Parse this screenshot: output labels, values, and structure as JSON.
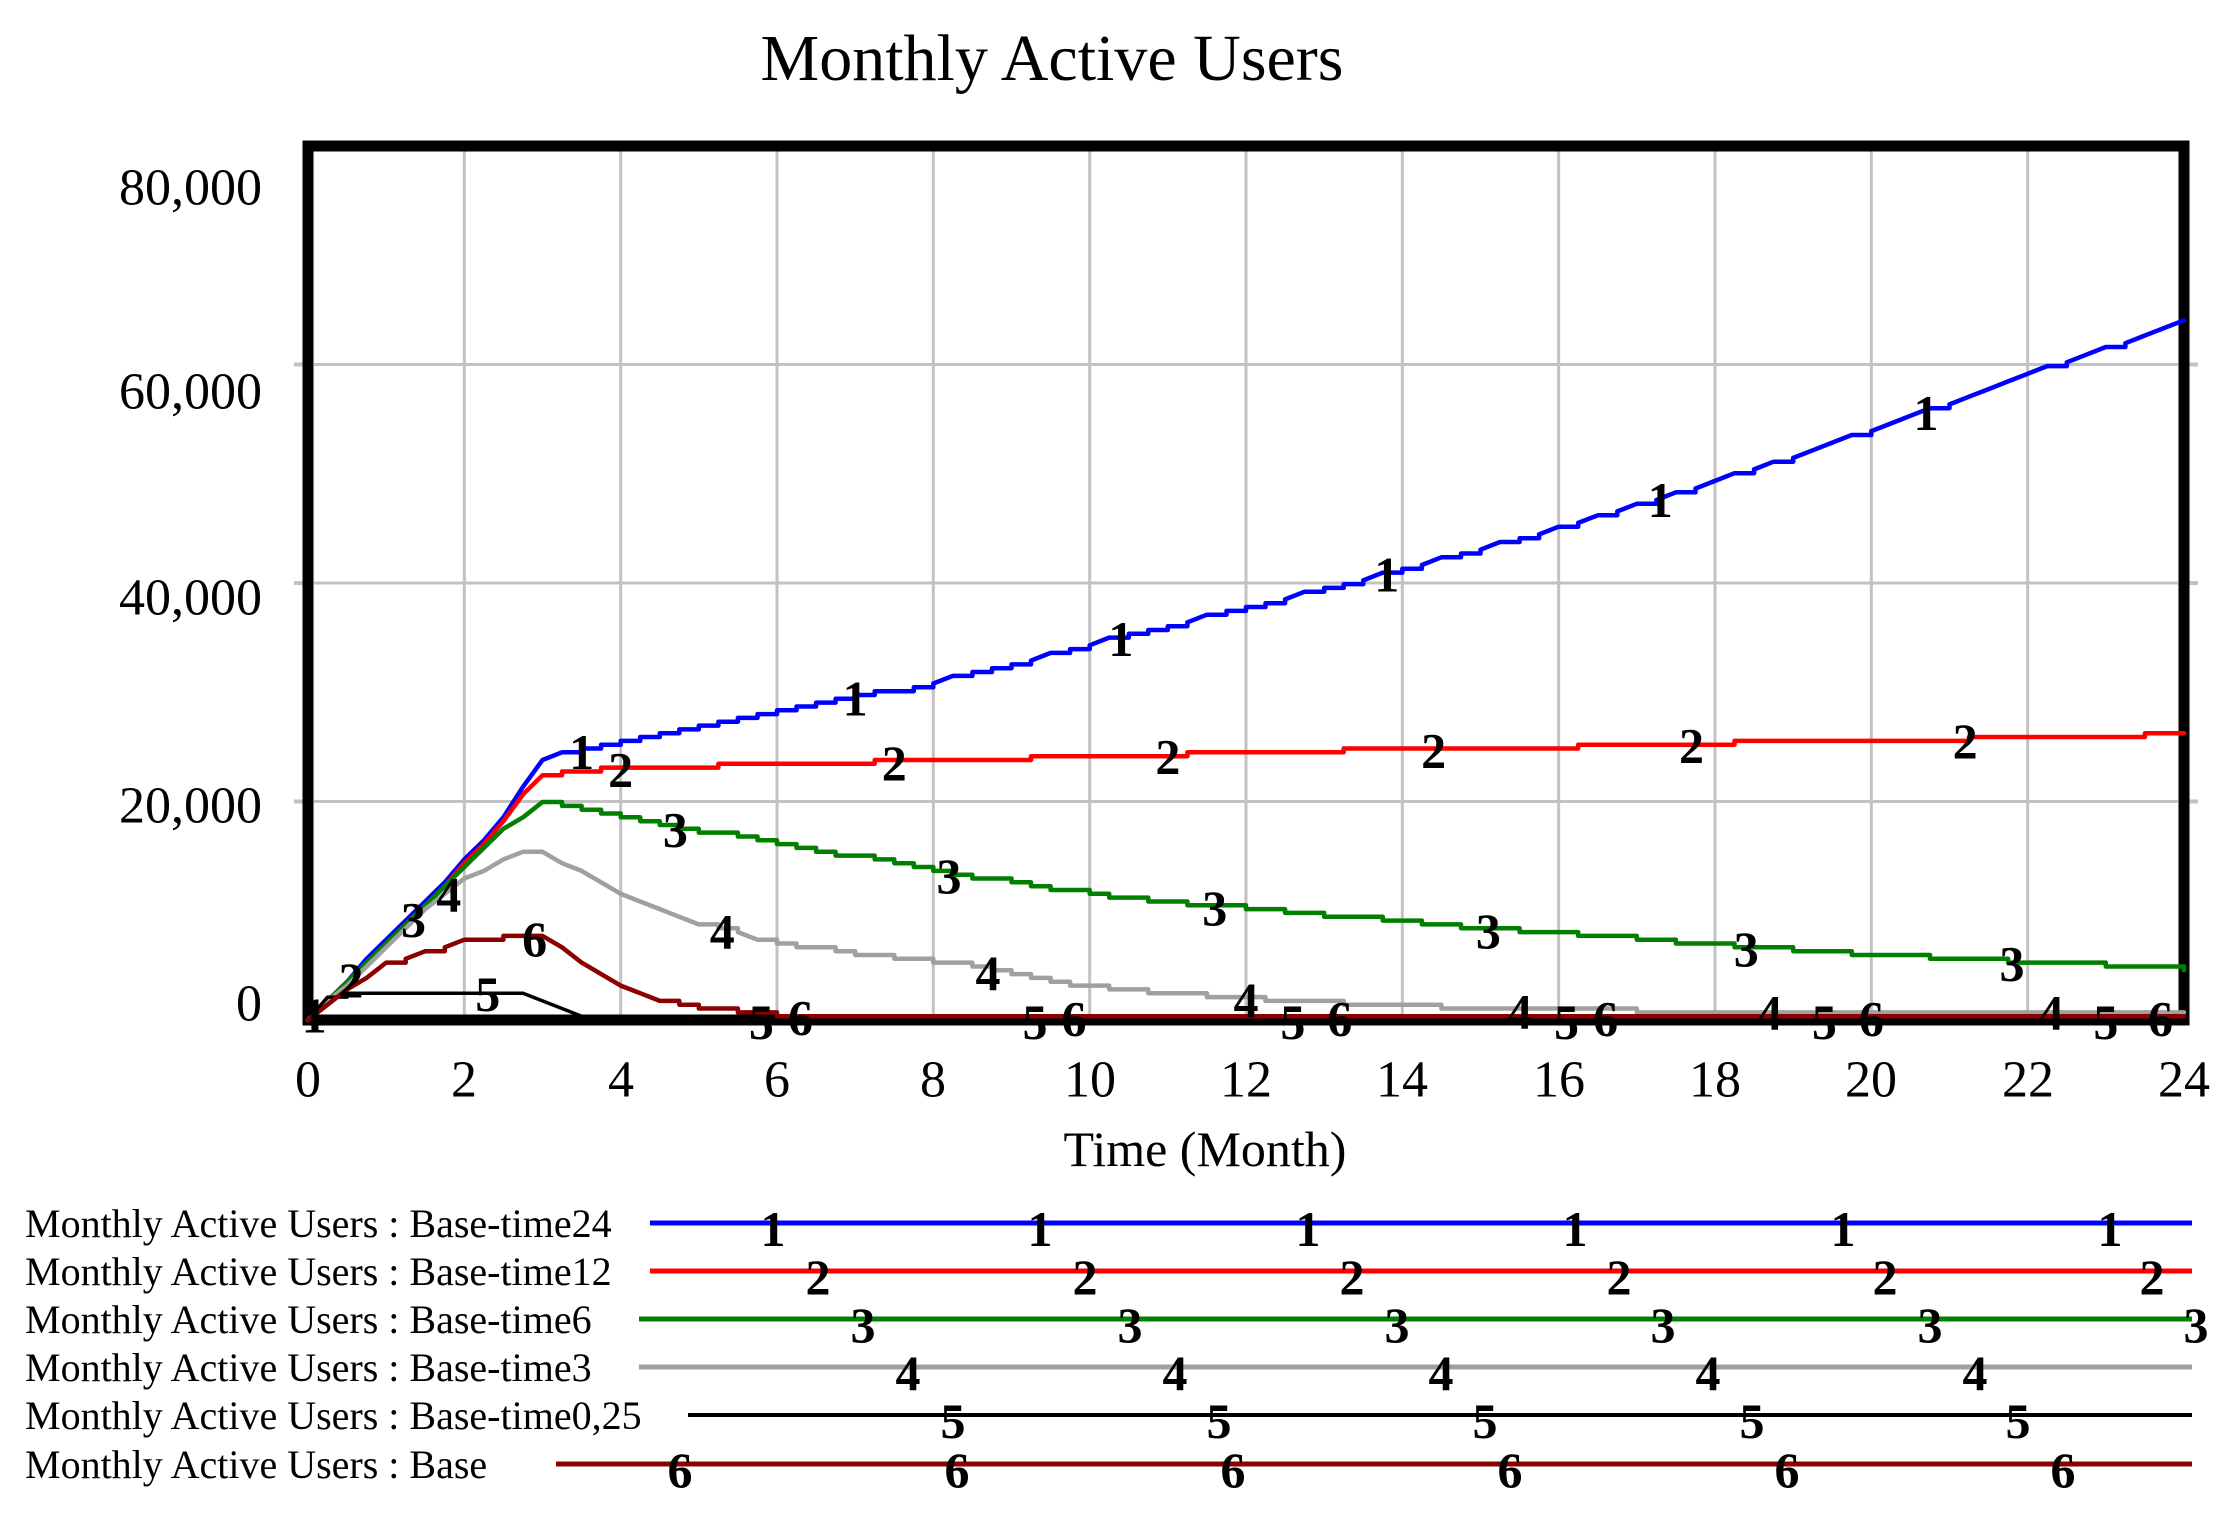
{
  "title": "Monthly Active Users",
  "x_axis": {
    "label": "Time (Month)",
    "ticks": [
      "0",
      "2",
      "4",
      "6",
      "8",
      "10",
      "12",
      "14",
      "16",
      "18",
      "20",
      "22",
      "24"
    ]
  },
  "y_axis": {
    "ticks": [
      "80,000",
      "60,000",
      "40,000",
      "20,000",
      "0"
    ]
  },
  "colors": {
    "grid": "#C2C2C2",
    "plot_border": "#000000",
    "background": "#FFFFFF"
  },
  "chart_data": {
    "type": "line",
    "title": "Monthly Active Users",
    "xlabel": "Time (Month)",
    "ylabel": "",
    "xlim": [
      0,
      24
    ],
    "ylim": [
      0,
      80000
    ],
    "grid": true,
    "legend_position": "bottom-left",
    "series": [
      {
        "name": "Base-time24",
        "legend_label": "Monthly Active Users : Base-time24",
        "marker": "1",
        "color": "#0000FF",
        "legend_line_x": 650,
        "legend_marker_xs": [
          773,
          1040,
          1308,
          1575,
          1843,
          2110
        ],
        "marker_ts": [
          0.08,
          3.5,
          7.0,
          10.4,
          13.8,
          17.3,
          20.7
        ],
        "points": [
          [
            0,
            0
          ],
          [
            0.5,
            3600
          ],
          [
            1,
            7300
          ],
          [
            1.5,
            10900
          ],
          [
            2,
            14600
          ],
          [
            2.5,
            18600
          ],
          [
            2.9,
            23200
          ],
          [
            3.1,
            24100
          ],
          [
            3.5,
            24700
          ],
          [
            4,
            25600
          ],
          [
            5,
            27000
          ],
          [
            6,
            28300
          ],
          [
            7,
            29600
          ],
          [
            8,
            30900
          ],
          [
            9,
            32600
          ],
          [
            10,
            34400
          ],
          [
            11,
            36100
          ],
          [
            12,
            37800
          ],
          [
            13,
            39500
          ],
          [
            14,
            41300
          ],
          [
            15,
            43100
          ],
          [
            16,
            45000
          ],
          [
            17,
            47100
          ],
          [
            18,
            49300
          ],
          [
            19,
            51600
          ],
          [
            20,
            54000
          ],
          [
            21,
            56500
          ],
          [
            22,
            59100
          ],
          [
            23,
            61500
          ],
          [
            24,
            63900
          ]
        ]
      },
      {
        "name": "Base-time12",
        "legend_label": "Monthly Active Users : Base-time12",
        "marker": "2",
        "color": "#FF0000",
        "legend_line_x": 650,
        "legend_marker_xs": [
          818,
          1085,
          1352,
          1619,
          1885,
          2152
        ],
        "marker_ts": [
          0.55,
          4.0,
          7.5,
          11.0,
          14.4,
          17.7,
          21.2
        ],
        "points": [
          [
            0,
            0
          ],
          [
            0.5,
            3500
          ],
          [
            1,
            7100
          ],
          [
            1.5,
            10600
          ],
          [
            2,
            14200
          ],
          [
            2.5,
            18100
          ],
          [
            2.9,
            22400
          ],
          [
            3.2,
            22800
          ],
          [
            4,
            23100
          ],
          [
            5,
            23250
          ],
          [
            6,
            23400
          ],
          [
            7,
            23600
          ],
          [
            8,
            23800
          ],
          [
            9,
            23950
          ],
          [
            10,
            24100
          ],
          [
            11,
            24300
          ],
          [
            12,
            24500
          ],
          [
            13,
            24650
          ],
          [
            14,
            24800
          ],
          [
            15,
            24900
          ],
          [
            16,
            25000
          ],
          [
            17,
            25200
          ],
          [
            18,
            25350
          ],
          [
            19,
            25500
          ],
          [
            20,
            25600
          ],
          [
            21,
            25700
          ],
          [
            22,
            25800
          ],
          [
            23,
            26000
          ],
          [
            24,
            26200
          ]
        ]
      },
      {
        "name": "Base-time6",
        "legend_label": "Monthly Active Users : Base-time6",
        "marker": "3",
        "color": "#007F00",
        "legend_line_x": 639,
        "legend_marker_xs": [
          863,
          1130,
          1397,
          1663,
          1930,
          2196
        ],
        "marker_ts": [
          1.35,
          4.7,
          8.2,
          11.6,
          15.1,
          18.4,
          21.8
        ],
        "points": [
          [
            0,
            0
          ],
          [
            0.5,
            3400
          ],
          [
            1,
            7000
          ],
          [
            1.5,
            10400
          ],
          [
            2,
            13900
          ],
          [
            2.5,
            17400
          ],
          [
            3,
            19800
          ],
          [
            3.5,
            19100
          ],
          [
            4,
            18400
          ],
          [
            5,
            17300
          ],
          [
            6,
            16100
          ],
          [
            7,
            14900
          ],
          [
            8,
            13600
          ],
          [
            9,
            12500
          ],
          [
            10,
            11500
          ],
          [
            11,
            10800
          ],
          [
            12,
            10200
          ],
          [
            13,
            9600
          ],
          [
            14,
            9000
          ],
          [
            15,
            8400
          ],
          [
            16,
            7900
          ],
          [
            17,
            7400
          ],
          [
            18,
            6900
          ],
          [
            19,
            6400
          ],
          [
            20,
            6000
          ],
          [
            21,
            5600
          ],
          [
            22,
            5300
          ],
          [
            23,
            5000
          ],
          [
            24,
            4700
          ]
        ]
      },
      {
        "name": "Base-time3",
        "legend_label": "Monthly Active Users : Base-time3",
        "marker": "4",
        "color": "#A0A0A0",
        "legend_line_x": 639,
        "legend_marker_xs": [
          908,
          1175,
          1441,
          1708,
          1975
        ],
        "marker_ts": [
          1.8,
          5.3,
          8.7,
          12.0,
          15.5,
          18.7,
          22.3
        ],
        "points": [
          [
            0,
            0
          ],
          [
            0.5,
            3300
          ],
          [
            1,
            6800
          ],
          [
            1.5,
            10000
          ],
          [
            2,
            12800
          ],
          [
            2.5,
            14800
          ],
          [
            2.9,
            15600
          ],
          [
            3.5,
            13600
          ],
          [
            4,
            11600
          ],
          [
            4.5,
            10100
          ],
          [
            5,
            8900
          ],
          [
            6,
            6900
          ],
          [
            7,
            6100
          ],
          [
            8,
            5400
          ],
          [
            9,
            4100
          ],
          [
            10,
            3000
          ],
          [
            11,
            2400
          ],
          [
            12,
            2000
          ],
          [
            13,
            1600
          ],
          [
            14,
            1300
          ],
          [
            15,
            1050
          ],
          [
            16,
            900
          ],
          [
            17,
            870
          ],
          [
            18,
            850
          ],
          [
            19,
            850
          ],
          [
            20,
            850
          ],
          [
            21,
            850
          ],
          [
            22,
            850
          ],
          [
            23,
            850
          ],
          [
            24,
            850
          ]
        ]
      },
      {
        "name": "Base-time0,25",
        "legend_label": "Monthly Active Users : Base-time0,25",
        "marker": "5",
        "color": "#000000",
        "legend_line_x": 688,
        "legend_marker_xs": [
          953,
          1219,
          1485,
          1752,
          2018
        ],
        "marker_ts": [
          2.3,
          5.8,
          9.3,
          12.6,
          16.1,
          19.4,
          23.0
        ],
        "points": [
          [
            0,
            0
          ],
          [
            0.25,
            2100
          ],
          [
            0.7,
            2450
          ],
          [
            1,
            2450
          ],
          [
            1.5,
            2500
          ],
          [
            2,
            2550
          ],
          [
            2.5,
            2550
          ],
          [
            2.8,
            2300
          ],
          [
            3,
            1800
          ],
          [
            3.3,
            900
          ],
          [
            3.6,
            300
          ],
          [
            4,
            80
          ],
          [
            5,
            0
          ],
          [
            8,
            0
          ],
          [
            12,
            0
          ],
          [
            16,
            0
          ],
          [
            20,
            0
          ],
          [
            24,
            0
          ]
        ]
      },
      {
        "name": "Base",
        "legend_label": "Monthly Active Users : Base",
        "marker": "6",
        "color": "#8B0000",
        "legend_line_x": 556,
        "legend_marker_xs": [
          680,
          957,
          1233,
          1510,
          1787,
          2063
        ],
        "marker_ts": [
          2.9,
          6.3,
          9.8,
          13.2,
          16.6,
          20.0,
          23.7
        ],
        "points": [
          [
            0,
            0
          ],
          [
            0.5,
            2800
          ],
          [
            1,
            5100
          ],
          [
            1.5,
            6400
          ],
          [
            2,
            7200
          ],
          [
            2.5,
            7700
          ],
          [
            3,
            7600
          ],
          [
            3.5,
            5400
          ],
          [
            4,
            3300
          ],
          [
            4.5,
            1900
          ],
          [
            5,
            1200
          ],
          [
            5.5,
            800
          ],
          [
            6,
            500
          ],
          [
            6.5,
            350
          ],
          [
            7,
            300
          ],
          [
            8,
            300
          ],
          [
            10,
            300
          ],
          [
            12,
            300
          ],
          [
            14,
            300
          ],
          [
            16,
            300
          ],
          [
            18,
            300
          ],
          [
            20,
            300
          ],
          [
            22,
            300
          ],
          [
            24,
            300
          ]
        ]
      }
    ]
  }
}
